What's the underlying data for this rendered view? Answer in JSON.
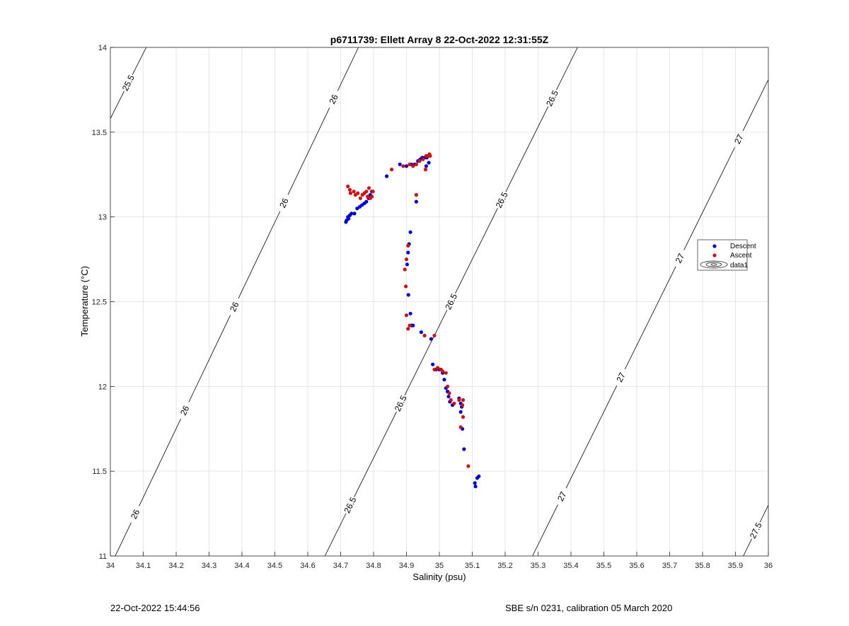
{
  "footer": {
    "left": "22-Oct-2022 15:44:56",
    "right": "SBE s/n 0231, calibration 05 March 2020"
  },
  "chart_data": {
    "type": "scatter",
    "title": "p6711739: Ellett Array 8 22-Oct-2022 12:31:55Z",
    "xlabel": "Salinity (psu)",
    "ylabel": "Temperature (°C)",
    "xlim": [
      34,
      36
    ],
    "ylim": [
      11,
      14
    ],
    "xticks": [
      "34",
      "34.1",
      "34.2",
      "34.3",
      "34.4",
      "34.5",
      "34.6",
      "34.7",
      "34.8",
      "34.9",
      "35",
      "35.1",
      "35.2",
      "35.3",
      "35.4",
      "35.5",
      "35.6",
      "35.7",
      "35.8",
      "35.9",
      "36"
    ],
    "yticks": [
      "11",
      "11.5",
      "12",
      "12.5",
      "13",
      "13.5",
      "14"
    ],
    "grid": true,
    "legend": {
      "placement": "right",
      "entries": [
        "Descent",
        "Ascent",
        "data1"
      ]
    },
    "colors": {
      "descent": "#0000cc",
      "ascent": "#cc1111",
      "grid": "#e6e6e6",
      "contour": "#000000"
    },
    "contours": [
      {
        "level": "25.5",
        "labels": [
          "25.5"
        ],
        "line": [
          [
            34.0,
            13.58
          ],
          [
            34.109,
            14.0
          ]
        ]
      },
      {
        "level": "26",
        "labels": [
          "26",
          "26",
          "26",
          "26",
          "26"
        ],
        "line": [
          [
            34.0,
            10.94
          ],
          [
            34.754,
            14.0
          ]
        ]
      },
      {
        "level": "26.5",
        "labels": [
          "26.5",
          "26.5",
          "26.5",
          "26.5",
          "26.5"
        ],
        "line": [
          [
            34.652,
            11.0
          ],
          [
            35.42,
            14.0
          ]
        ]
      },
      {
        "level": "27",
        "labels": [
          "27",
          "27",
          "27",
          "27"
        ],
        "line": [
          [
            35.283,
            11.0
          ],
          [
            36.0,
            13.81
          ]
        ]
      },
      {
        "level": "27.5",
        "labels": [
          "27.5"
        ],
        "line": [
          [
            35.924,
            11.0
          ],
          [
            36.0,
            11.3
          ]
        ]
      }
    ],
    "series": [
      {
        "name": "Descent",
        "points": [
          [
            34.716,
            12.97
          ],
          [
            34.718,
            12.98
          ],
          [
            34.722,
            13.0
          ],
          [
            34.724,
            12.99
          ],
          [
            34.728,
            13.01
          ],
          [
            34.733,
            13.02
          ],
          [
            34.742,
            13.02
          ],
          [
            34.75,
            13.05
          ],
          [
            34.758,
            13.06
          ],
          [
            34.765,
            13.07
          ],
          [
            34.772,
            13.08
          ],
          [
            34.778,
            13.09
          ],
          [
            34.785,
            13.11
          ],
          [
            34.79,
            13.13
          ],
          [
            34.795,
            13.15
          ],
          [
            34.84,
            13.24
          ],
          [
            34.88,
            13.31
          ],
          [
            34.9,
            13.3
          ],
          [
            34.915,
            13.31
          ],
          [
            34.925,
            13.31
          ],
          [
            34.935,
            13.33
          ],
          [
            34.942,
            13.34
          ],
          [
            34.948,
            13.35
          ],
          [
            34.955,
            13.35
          ],
          [
            34.962,
            13.35
          ],
          [
            34.968,
            13.32
          ],
          [
            34.96,
            13.3
          ],
          [
            34.93,
            13.09
          ],
          [
            34.912,
            12.91
          ],
          [
            34.908,
            12.84
          ],
          [
            34.905,
            12.79
          ],
          [
            34.902,
            12.72
          ],
          [
            34.906,
            12.54
          ],
          [
            34.912,
            12.43
          ],
          [
            34.915,
            12.36
          ],
          [
            34.92,
            12.36
          ],
          [
            34.945,
            12.32
          ],
          [
            34.975,
            12.28
          ],
          [
            34.98,
            12.13
          ],
          [
            34.99,
            12.1
          ],
          [
            35.0,
            12.1
          ],
          [
            35.01,
            12.08
          ],
          [
            35.015,
            12.04
          ],
          [
            35.02,
            11.99
          ],
          [
            35.025,
            11.97
          ],
          [
            35.028,
            11.94
          ],
          [
            35.032,
            11.91
          ],
          [
            35.04,
            11.89
          ],
          [
            35.06,
            11.93
          ],
          [
            35.065,
            11.9
          ],
          [
            35.068,
            11.88
          ],
          [
            35.065,
            11.85
          ],
          [
            35.07,
            11.75
          ],
          [
            35.075,
            11.63
          ],
          [
            35.108,
            11.43
          ],
          [
            35.11,
            11.41
          ],
          [
            35.115,
            11.46
          ],
          [
            35.12,
            11.47
          ]
        ]
      },
      {
        "name": "Ascent",
        "points": [
          [
            34.722,
            13.18
          ],
          [
            34.728,
            13.16
          ],
          [
            34.73,
            13.14
          ],
          [
            34.74,
            13.15
          ],
          [
            34.745,
            13.13
          ],
          [
            34.752,
            13.14
          ],
          [
            34.76,
            13.11
          ],
          [
            34.766,
            13.13
          ],
          [
            34.772,
            13.14
          ],
          [
            34.778,
            13.15
          ],
          [
            34.782,
            13.12
          ],
          [
            34.786,
            13.17
          ],
          [
            34.79,
            13.11
          ],
          [
            34.795,
            13.12
          ],
          [
            34.798,
            13.15
          ],
          [
            34.855,
            13.28
          ],
          [
            34.89,
            13.3
          ],
          [
            34.91,
            13.31
          ],
          [
            34.92,
            13.3
          ],
          [
            34.93,
            13.31
          ],
          [
            34.94,
            13.33
          ],
          [
            34.95,
            13.34
          ],
          [
            34.96,
            13.36
          ],
          [
            34.965,
            13.36
          ],
          [
            34.97,
            13.37
          ],
          [
            34.972,
            13.36
          ],
          [
            34.958,
            13.28
          ],
          [
            34.93,
            13.13
          ],
          [
            34.905,
            12.83
          ],
          [
            34.9,
            12.75
          ],
          [
            34.895,
            12.69
          ],
          [
            34.898,
            12.59
          ],
          [
            34.9,
            12.42
          ],
          [
            34.905,
            12.34
          ],
          [
            34.91,
            12.36
          ],
          [
            34.955,
            12.3
          ],
          [
            34.985,
            12.3
          ],
          [
            34.985,
            12.1
          ],
          [
            34.995,
            12.11
          ],
          [
            35.005,
            12.1
          ],
          [
            35.01,
            12.09
          ],
          [
            35.02,
            12.08
          ],
          [
            35.025,
            12.0
          ],
          [
            35.03,
            11.96
          ],
          [
            35.035,
            11.92
          ],
          [
            35.045,
            11.9
          ],
          [
            35.06,
            11.92
          ],
          [
            35.065,
            11.76
          ],
          [
            35.072,
            11.92
          ],
          [
            35.07,
            11.89
          ],
          [
            35.072,
            11.82
          ],
          [
            35.088,
            11.53
          ]
        ]
      }
    ]
  }
}
